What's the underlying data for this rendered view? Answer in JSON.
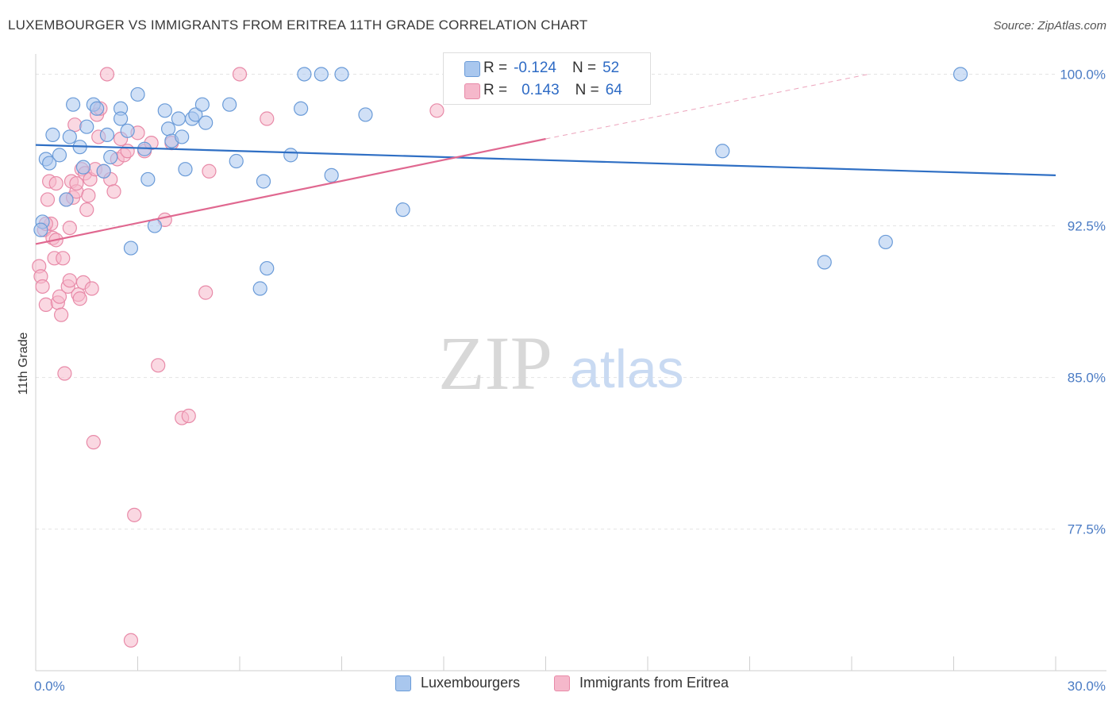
{
  "title": "LUXEMBOURGER VS IMMIGRANTS FROM ERITREA 11TH GRADE CORRELATION CHART",
  "source": "Source: ZipAtlas.com",
  "watermark": {
    "zip": "ZIP",
    "atlas": "atlas"
  },
  "colors": {
    "blue_fill": "#a9c7ee",
    "blue_stroke": "#6a9bd8",
    "blue_line": "#2f6fc4",
    "pink_fill": "#f5b8cb",
    "pink_stroke": "#e88aa8",
    "pink_line": "#e06890",
    "tick_text": "#4a7bc4",
    "grid": "#e4e4e4"
  },
  "legend_top": {
    "rows": [
      {
        "r_label": "R =",
        "r_value": "-0.124",
        "n_label": "N =",
        "n_value": "52"
      },
      {
        "r_label": "R =",
        "r_value": "0.143",
        "n_label": "N =",
        "n_value": "64"
      }
    ]
  },
  "legend_bottom": [
    "Luxembourgers",
    "Immigrants from Eritrea"
  ],
  "chart_data": {
    "type": "scatter",
    "title": "LUXEMBOURGER VS IMMIGRANTS FROM ERITREA 11TH GRADE CORRELATION CHART",
    "xlabel": "",
    "ylabel": "11th Grade",
    "xlim": [
      0,
      30
    ],
    "ylim": [
      70.5,
      101
    ],
    "x_tick_labels": [
      {
        "value": 0,
        "label": "0.0%"
      },
      {
        "value": 30,
        "label": "30.0%"
      }
    ],
    "y_tick_labels": [
      {
        "value": 100,
        "label": "100.0%"
      },
      {
        "value": 92.5,
        "label": "92.5%"
      },
      {
        "value": 85,
        "label": "85.0%"
      },
      {
        "value": 77.5,
        "label": "77.5%"
      }
    ],
    "grid": true,
    "legend_position": "bottom",
    "series": [
      {
        "name": "Luxembourgers",
        "color": "#a9c7ee",
        "trend": {
          "x0": 0,
          "y0": 96.5,
          "x1": 30,
          "y1": 95.0
        },
        "points": [
          [
            0.2,
            92.7
          ],
          [
            0.3,
            95.8
          ],
          [
            0.4,
            95.6
          ],
          [
            0.5,
            97.0
          ],
          [
            0.7,
            96.0
          ],
          [
            0.9,
            93.8
          ],
          [
            1.0,
            96.9
          ],
          [
            1.1,
            98.5
          ],
          [
            1.3,
            96.4
          ],
          [
            1.4,
            95.4
          ],
          [
            1.5,
            97.4
          ],
          [
            1.7,
            98.5
          ],
          [
            1.8,
            98.3
          ],
          [
            2.0,
            95.2
          ],
          [
            2.1,
            97.0
          ],
          [
            2.2,
            95.9
          ],
          [
            2.5,
            98.3
          ],
          [
            2.5,
            97.8
          ],
          [
            2.7,
            97.2
          ],
          [
            2.8,
            91.4
          ],
          [
            3.0,
            99.0
          ],
          [
            3.2,
            96.3
          ],
          [
            3.3,
            94.8
          ],
          [
            3.5,
            92.5
          ],
          [
            3.8,
            98.2
          ],
          [
            3.9,
            97.3
          ],
          [
            4.0,
            96.7
          ],
          [
            4.2,
            97.8
          ],
          [
            4.3,
            96.9
          ],
          [
            4.4,
            95.3
          ],
          [
            4.6,
            97.8
          ],
          [
            4.7,
            98.0
          ],
          [
            4.9,
            98.5
          ],
          [
            5.0,
            97.6
          ],
          [
            5.7,
            98.5
          ],
          [
            5.9,
            95.7
          ],
          [
            6.6,
            89.4
          ],
          [
            6.7,
            94.7
          ],
          [
            6.8,
            90.4
          ],
          [
            7.5,
            96.0
          ],
          [
            7.8,
            98.3
          ],
          [
            7.9,
            100.0
          ],
          [
            8.4,
            100.0
          ],
          [
            8.7,
            95.0
          ],
          [
            9.0,
            100.0
          ],
          [
            9.7,
            98.0
          ],
          [
            10.8,
            93.3
          ],
          [
            20.2,
            96.2
          ],
          [
            23.2,
            90.7
          ],
          [
            25.0,
            91.7
          ],
          [
            27.2,
            100.0
          ],
          [
            0.15,
            92.3
          ]
        ]
      },
      {
        "name": "Immigrants from Eritrea",
        "color": "#f5b8cb",
        "trend": {
          "x0": 0,
          "y0": 91.6,
          "x1": 15,
          "y1": 96.8
        },
        "trend_dashed": {
          "x0": 15,
          "y0": 96.8,
          "x1": 24.5,
          "y1": 100.0
        },
        "points": [
          [
            0.1,
            90.5
          ],
          [
            0.15,
            90.0
          ],
          [
            0.2,
            89.5
          ],
          [
            0.25,
            92.3
          ],
          [
            0.3,
            88.6
          ],
          [
            0.35,
            93.8
          ],
          [
            0.4,
            94.7
          ],
          [
            0.45,
            92.6
          ],
          [
            0.5,
            91.9
          ],
          [
            0.55,
            90.9
          ],
          [
            0.6,
            94.6
          ],
          [
            0.65,
            88.7
          ],
          [
            0.7,
            89.0
          ],
          [
            0.75,
            88.1
          ],
          [
            0.8,
            90.9
          ],
          [
            0.85,
            85.2
          ],
          [
            0.9,
            93.8
          ],
          [
            0.95,
            89.5
          ],
          [
            1.0,
            92.4
          ],
          [
            1.05,
            94.7
          ],
          [
            1.1,
            93.9
          ],
          [
            1.15,
            97.5
          ],
          [
            1.2,
            94.2
          ],
          [
            1.25,
            89.1
          ],
          [
            1.3,
            88.9
          ],
          [
            1.35,
            95.3
          ],
          [
            1.4,
            89.7
          ],
          [
            1.45,
            95.1
          ],
          [
            1.5,
            93.3
          ],
          [
            1.55,
            94.0
          ],
          [
            1.6,
            94.8
          ],
          [
            1.65,
            89.4
          ],
          [
            1.7,
            81.8
          ],
          [
            1.75,
            95.3
          ],
          [
            1.8,
            98.0
          ],
          [
            1.85,
            96.9
          ],
          [
            1.9,
            98.3
          ],
          [
            2.0,
            95.2
          ],
          [
            2.1,
            100.0
          ],
          [
            2.2,
            94.8
          ],
          [
            2.3,
            94.2
          ],
          [
            2.4,
            95.8
          ],
          [
            2.6,
            96.0
          ],
          [
            2.7,
            96.2
          ],
          [
            2.8,
            72.0
          ],
          [
            2.9,
            78.2
          ],
          [
            3.0,
            97.1
          ],
          [
            3.2,
            96.2
          ],
          [
            3.4,
            96.6
          ],
          [
            3.6,
            85.6
          ],
          [
            3.8,
            92.8
          ],
          [
            4.0,
            96.6
          ],
          [
            4.3,
            83.0
          ],
          [
            4.5,
            83.1
          ],
          [
            5.0,
            89.2
          ],
          [
            5.1,
            95.2
          ],
          [
            6.0,
            100.0
          ],
          [
            6.8,
            97.8
          ],
          [
            11.8,
            98.2
          ],
          [
            0.3,
            92.6
          ],
          [
            1.0,
            89.8
          ],
          [
            1.2,
            94.6
          ],
          [
            0.6,
            91.8
          ],
          [
            2.5,
            96.8
          ]
        ]
      }
    ]
  }
}
